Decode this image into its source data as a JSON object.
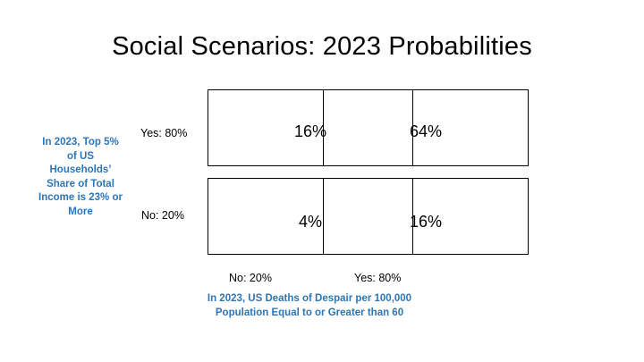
{
  "title": "Social Scenarios: 2023 Probabilities",
  "y_axis": {
    "title": "In 2023, Top 5% of US Households’ Share of Total Income is 23% or More",
    "rows": [
      {
        "label": "Yes:  80%",
        "probability": 0.8
      },
      {
        "label": "No: 20%",
        "probability": 0.2
      }
    ]
  },
  "x_axis": {
    "title": "In 2023, US Deaths of Despair per 100,000 Population Equal to or Greater than 60",
    "columns": [
      {
        "label": "No: 20%",
        "probability": 0.2
      },
      {
        "label": "Yes: 80%",
        "probability": 0.8
      }
    ]
  },
  "cells": [
    [
      "16%",
      "64%"
    ],
    [
      "4%",
      "16%"
    ]
  ],
  "colors": {
    "axis_title": "#2e75b6",
    "text": "#000000",
    "border": "#000000"
  }
}
